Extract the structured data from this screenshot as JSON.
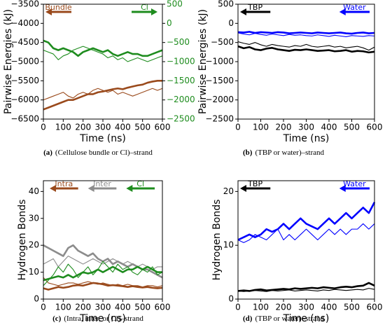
{
  "chart_data": [
    {
      "type": "line",
      "panel": "(a)",
      "caption": "(Cellulose bundle or Cl)–strand",
      "xlabel": "Time (ns)",
      "ylabel": "Pairwise Energies (kJ)",
      "xlim": [
        0,
        600
      ],
      "xticks": [
        0,
        100,
        200,
        300,
        400,
        500,
        600
      ],
      "ylim": [
        -6500,
        -3500
      ],
      "yticks": [
        {
          "value": -6500,
          "label": "−6500"
        },
        {
          "value": -6000,
          "label": "−6000"
        },
        {
          "value": -5500,
          "label": "−5500"
        },
        {
          "value": -5000,
          "label": "−5000"
        },
        {
          "value": -4500,
          "label": "−4500"
        },
        {
          "value": -4000,
          "label": "−4000"
        },
        {
          "value": -3500,
          "label": "−3500"
        }
      ],
      "y2lim": [
        -2500,
        500
      ],
      "y2ticks": [
        {
          "value": -2500,
          "label": "−2500"
        },
        {
          "value": -2000,
          "label": "−2000"
        },
        {
          "value": -1500,
          "label": "−1500"
        },
        {
          "value": -1000,
          "label": "−1000"
        },
        {
          "value": -500,
          "label": "−500"
        },
        0,
        500
      ],
      "y2color": "#1e8c1e",
      "x": [
        0,
        25,
        50,
        75,
        100,
        125,
        150,
        175,
        200,
        225,
        250,
        275,
        300,
        325,
        350,
        375,
        400,
        425,
        450,
        475,
        500,
        525,
        550,
        575,
        600
      ],
      "series": [
        {
          "name": "Bundle",
          "color": "#9a4a1c",
          "axis": "y",
          "arrow": "left",
          "lines": [
            [
              -6250,
              -6200,
              -6150,
              -6100,
              -6050,
              -6000,
              -6000,
              -5950,
              -5900,
              -5850,
              -5850,
              -5800,
              -5780,
              -5750,
              -5720,
              -5700,
              -5720,
              -5680,
              -5650,
              -5620,
              -5600,
              -5550,
              -5520,
              -5500,
              -5500
            ],
            [
              -6000,
              -5950,
              -5900,
              -5850,
              -5800,
              -5900,
              -5950,
              -5850,
              -5800,
              -5850,
              -5750,
              -5700,
              -5750,
              -5800,
              -5750,
              -5850,
              -5800,
              -5850,
              -5900,
              -5850,
              -5800,
              -5750,
              -5700,
              -5750,
              -5700
            ]
          ]
        },
        {
          "name": "Cl",
          "color": "#1e8c1e",
          "axis": "y2",
          "arrow": "right",
          "lines": [
            [
              -450,
              -500,
              -650,
              -700,
              -650,
              -700,
              -750,
              -850,
              -750,
              -700,
              -650,
              -700,
              -750,
              -700,
              -800,
              -850,
              -800,
              -750,
              -800,
              -800,
              -850,
              -850,
              -800,
              -750,
              -700
            ],
            [
              -700,
              -750,
              -800,
              -950,
              -850,
              -800,
              -700,
              -650,
              -600,
              -650,
              -700,
              -750,
              -800,
              -900,
              -850,
              -950,
              -900,
              -1000,
              -950,
              -900,
              -950,
              -1000,
              -950,
              -900,
              -850
            ]
          ]
        }
      ]
    },
    {
      "type": "line",
      "panel": "(b)",
      "caption": "(TBP or water)–strand",
      "xlabel": "Time (ns)",
      "ylabel": "Pairwise Energies (kJ)",
      "xlim": [
        0,
        600
      ],
      "xticks": [
        0,
        100,
        200,
        300,
        400,
        500,
        600
      ],
      "ylim": [
        -2500,
        500
      ],
      "yticks": [
        {
          "value": -2500,
          "label": "−2500"
        },
        {
          "value": -2000,
          "label": "−2000"
        },
        {
          "value": -1500,
          "label": "−1500"
        },
        {
          "value": -1000,
          "label": "−1000"
        },
        {
          "value": -500,
          "label": "−500"
        },
        0,
        500
      ],
      "x": [
        0,
        25,
        50,
        75,
        100,
        125,
        150,
        175,
        200,
        225,
        250,
        275,
        300,
        325,
        350,
        375,
        400,
        425,
        450,
        475,
        500,
        525,
        550,
        575,
        600
      ],
      "series": [
        {
          "name": "TBP",
          "color": "#000000",
          "axis": "y",
          "arrow": "left",
          "lines": [
            [
              -600,
              -650,
              -620,
              -680,
              -700,
              -660,
              -640,
              -680,
              -700,
              -720,
              -690,
              -700,
              -680,
              -700,
              -720,
              -710,
              -700,
              -730,
              -720,
              -700,
              -740,
              -720,
              -730,
              -760,
              -740
            ],
            [
              -480,
              -520,
              -550,
              -500,
              -560,
              -600,
              -550,
              -580,
              -600,
              -620,
              -580,
              -600,
              -550,
              -600,
              -620,
              -600,
              -580,
              -620,
              -600,
              -640,
              -620,
              -600,
              -640,
              -700,
              -620
            ]
          ]
        },
        {
          "name": "Water",
          "color": "#0000ff",
          "axis": "y",
          "arrow": "left",
          "lines": [
            [
              -230,
              -240,
              -220,
              -250,
              -230,
              -240,
              -250,
              -230,
              -240,
              -260,
              -250,
              -240,
              -250,
              -260,
              -240,
              -250,
              -260,
              -250,
              -240,
              -260,
              -270,
              -250,
              -240,
              -260,
              -250
            ],
            [
              -250,
              -280,
              -300,
              -260,
              -290,
              -310,
              -280,
              -300,
              -320,
              -290,
              -310,
              -300,
              -320,
              -330,
              -300,
              -320,
              -340,
              -310,
              -330,
              -350,
              -320,
              -330,
              -340,
              -320,
              -330
            ]
          ]
        }
      ]
    },
    {
      "type": "line",
      "panel": "(c)",
      "caption": "(Intra, inter, or Cl)–strand",
      "xlabel": "Time (ns)",
      "ylabel": "Hydrogen Bonds",
      "xlim": [
        0,
        600
      ],
      "xticks": [
        0,
        100,
        200,
        300,
        400,
        500,
        600
      ],
      "ylim": [
        0,
        44
      ],
      "yticks": [
        0,
        10,
        20,
        30,
        40
      ],
      "x": [
        0,
        25,
        50,
        75,
        100,
        125,
        150,
        175,
        200,
        225,
        250,
        275,
        300,
        325,
        350,
        375,
        400,
        425,
        450,
        475,
        500,
        525,
        550,
        575,
        600
      ],
      "series": [
        {
          "name": "Intra",
          "color": "#9a4a1c",
          "axis": "y",
          "arrow": "left",
          "lines": [
            [
              4,
              3.5,
              4,
              4.5,
              4.2,
              4.5,
              5,
              5.2,
              5,
              5.5,
              6,
              5.8,
              5.5,
              5,
              5.2,
              5,
              4.8,
              4.5,
              4.8,
              4.5,
              4.3,
              4.5,
              4.2,
              4,
              4.2
            ],
            [
              8,
              6,
              5.5,
              5,
              5.5,
              6,
              6,
              5.5,
              6,
              6.5,
              6,
              5.5,
              6,
              5.5,
              5,
              5.5,
              5,
              5.5,
              5,
              5,
              4.5,
              5,
              5,
              4.5,
              5
            ]
          ]
        },
        {
          "name": "Inter",
          "color": "#8c8c8c",
          "axis": "y",
          "arrow": "left",
          "lines": [
            [
              20,
              19,
              18,
              17,
              16,
              19,
              20,
              18,
              17,
              16,
              17,
              15,
              14,
              15,
              13,
              14,
              13,
              12,
              13,
              12,
              11,
              11,
              10,
              9,
              8
            ],
            [
              13,
              14,
              15,
              12,
              14,
              16,
              15,
              14,
              13,
              14,
              15,
              14,
              13,
              14,
              15,
              14,
              13,
              14,
              13,
              12,
              13,
              12,
              11,
              12,
              12
            ]
          ]
        },
        {
          "name": "Cl",
          "color": "#1e8c1e",
          "axis": "y",
          "arrow": "left",
          "lines": [
            [
              7,
              7.5,
              8,
              8.5,
              8,
              9,
              8,
              9,
              10,
              9.5,
              10,
              11,
              10,
              11,
              12,
              11,
              10,
              11,
              11,
              12,
              11,
              12,
              11,
              10,
              10
            ],
            [
              5,
              7,
              9,
              12,
              10,
              13,
              11,
              8,
              10,
              12,
              9,
              11,
              14,
              12,
              10,
              13,
              11,
              12,
              10,
              9,
              11,
              10,
              12,
              9,
              10
            ]
          ]
        }
      ]
    },
    {
      "type": "line",
      "panel": "(d)",
      "caption": "(TBP or water)–strand",
      "xlabel": "Time (ns)",
      "ylabel": "Hydrogen Bonds",
      "xlim": [
        0,
        600
      ],
      "xticks": [
        0,
        100,
        200,
        300,
        400,
        500,
        600
      ],
      "ylim": [
        0,
        22
      ],
      "yticks": [
        0,
        10,
        20
      ],
      "x": [
        0,
        25,
        50,
        75,
        100,
        125,
        150,
        175,
        200,
        225,
        250,
        275,
        300,
        325,
        350,
        375,
        400,
        425,
        450,
        475,
        500,
        525,
        550,
        575,
        600
      ],
      "series": [
        {
          "name": "TBP",
          "color": "#000000",
          "axis": "y",
          "arrow": "left",
          "lines": [
            [
              1.5,
              1.6,
              1.5,
              1.7,
              1.8,
              1.6,
              1.7,
              1.8,
              1.9,
              1.8,
              2,
              1.9,
              2,
              2.1,
              2,
              2.2,
              2.1,
              2,
              2.2,
              2.3,
              2.2,
              2.4,
              2.5,
              3,
              2.5
            ],
            [
              1.5,
              1.4,
              1.5,
              1.6,
              1.5,
              1.4,
              1.6,
              1.5,
              1.6,
              1.7,
              1.5,
              1.6,
              1.7,
              1.6,
              1.5,
              1.7,
              1.6,
              1.8,
              1.7,
              1.6,
              1.7,
              1.8,
              1.7,
              2,
              1.8
            ]
          ]
        },
        {
          "name": "Water",
          "color": "#0000ff",
          "axis": "y",
          "arrow": "left",
          "lines": [
            [
              11,
              11.5,
              12,
              11.5,
              12,
              13,
              12.5,
              13,
              14,
              13,
              14,
              15,
              14,
              13.5,
              13,
              14,
              15,
              14,
              15,
              16,
              15,
              16,
              17,
              16,
              18
            ],
            [
              11,
              10.5,
              11,
              12,
              11.5,
              11,
              12,
              13,
              11,
              12,
              11,
              12,
              13,
              12,
              11,
              12,
              13,
              12,
              13,
              12,
              13,
              13,
              14,
              13,
              14
            ]
          ]
        }
      ]
    }
  ]
}
